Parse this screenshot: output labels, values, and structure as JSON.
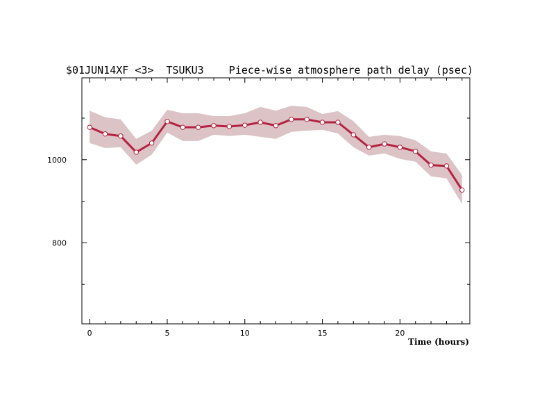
{
  "chart_data": {
    "type": "line",
    "title": "$01JUN14XF <3>  TSUKU3    Piece-wise atmosphere path delay (psec)",
    "xlabel": "Time (hours)",
    "ylabel": "",
    "xlim": [
      -0.5,
      24.5
    ],
    "ylim": [
      605,
      1197
    ],
    "x_ticks": [
      0,
      5,
      10,
      15,
      20
    ],
    "y_ticks": [
      800,
      1000
    ],
    "colors": {
      "line": "#b5223f",
      "band": "#dcc4c6",
      "marker_fill": "#ffffff"
    },
    "series": [
      {
        "x": [
          0,
          1,
          2,
          3,
          4,
          5,
          6,
          7,
          8,
          9,
          10,
          11,
          12,
          13,
          14,
          15,
          16,
          17,
          18,
          19,
          20,
          21,
          22,
          23,
          24
        ],
        "values": [
          1078,
          1062,
          1057,
          1018,
          1040,
          1092,
          1078,
          1078,
          1082,
          1080,
          1083,
          1090,
          1082,
          1097,
          1097,
          1090,
          1090,
          1060,
          1030,
          1038,
          1030,
          1020,
          987,
          985,
          927
        ],
        "upper": [
          1118,
          1102,
          1097,
          1050,
          1070,
          1120,
          1112,
          1112,
          1105,
          1105,
          1112,
          1127,
          1118,
          1130,
          1127,
          1110,
          1117,
          1093,
          1055,
          1060,
          1057,
          1047,
          1020,
          1015,
          963
        ],
        "lower": [
          1040,
          1028,
          1030,
          988,
          1012,
          1065,
          1045,
          1045,
          1060,
          1057,
          1060,
          1055,
          1050,
          1067,
          1070,
          1072,
          1063,
          1030,
          1010,
          1015,
          1002,
          995,
          960,
          955,
          893
        ]
      }
    ],
    "grid": false,
    "legend": "none"
  }
}
